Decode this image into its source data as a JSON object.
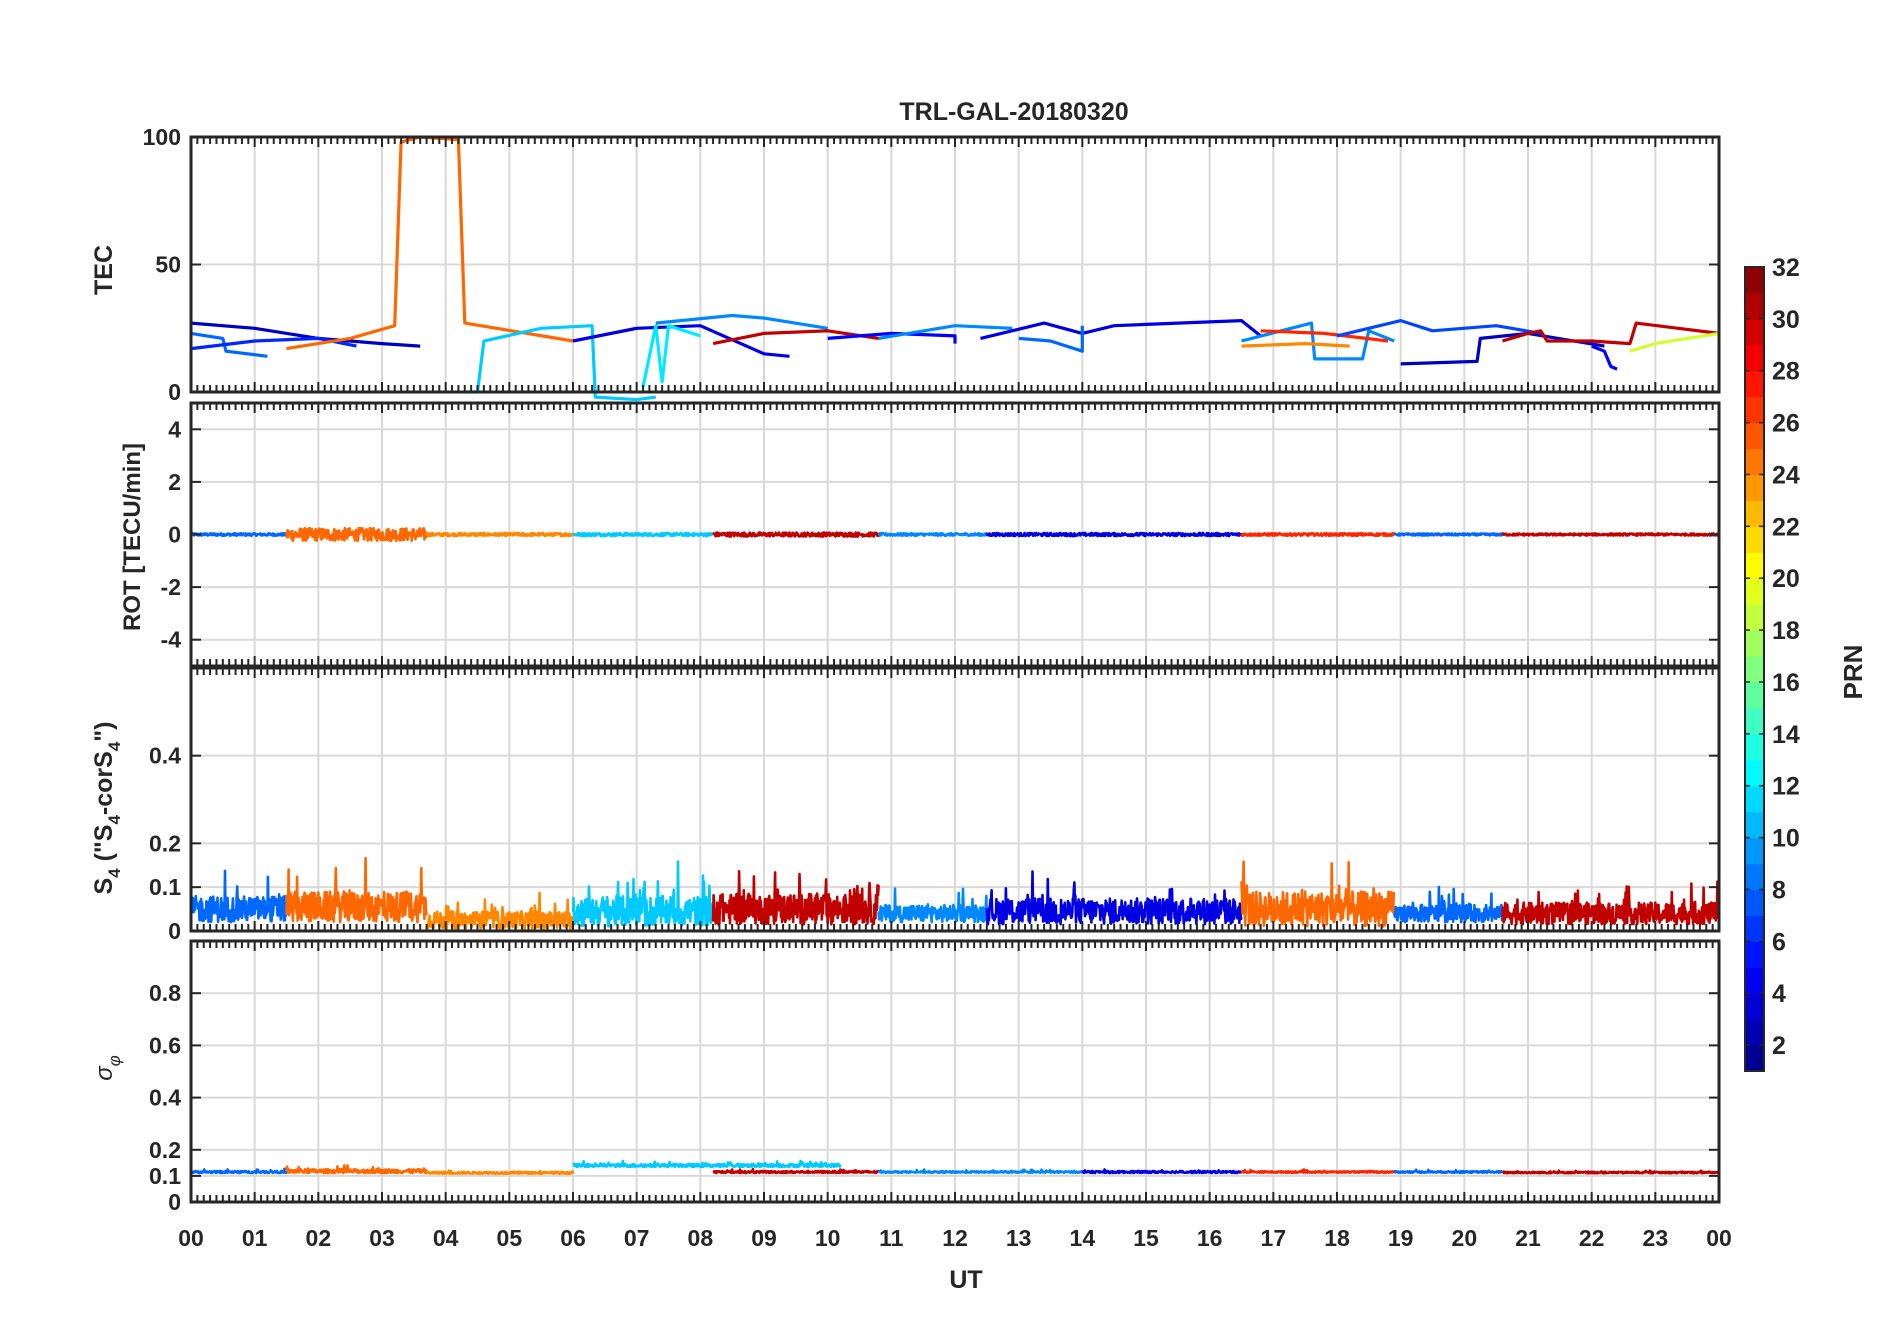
{
  "chart_data": {
    "type": "line",
    "title": "TRL-GAL-20180320",
    "xlabel": "UT",
    "x_ticks": [
      "00",
      "01",
      "02",
      "03",
      "04",
      "05",
      "06",
      "07",
      "08",
      "09",
      "10",
      "11",
      "12",
      "13",
      "14",
      "15",
      "16",
      "17",
      "18",
      "19",
      "20",
      "21",
      "22",
      "23",
      "00"
    ],
    "xlim": [
      0,
      24
    ],
    "grid": true,
    "colorbar": {
      "label": "PRN",
      "range": [
        1,
        32
      ],
      "ticks": [
        "2",
        "4",
        "6",
        "8",
        "10",
        "12",
        "14",
        "16",
        "18",
        "20",
        "22",
        "24",
        "26",
        "28",
        "30",
        "32"
      ],
      "colormap": "jet"
    },
    "panels": [
      {
        "name": "tec",
        "ylabel": "TEC",
        "ylim": [
          0,
          100
        ],
        "yticks": [
          "0",
          "50",
          "100"
        ],
        "series": [
          {
            "prn": 3,
            "x": [
              0.0,
              1.0,
              2.0,
              3.0,
              3.6
            ],
            "y": [
              27,
              25,
              21,
              19,
              18
            ]
          },
          {
            "prn": 8,
            "x": [
              0.0,
              0.5,
              0.55,
              1.2
            ],
            "y": [
              23,
              21,
              16,
              14
            ]
          },
          {
            "prn": 6,
            "x": [
              0.0,
              1.0,
              2.0,
              2.6
            ],
            "y": [
              17,
              20,
              21,
              18
            ]
          },
          {
            "prn": 25,
            "x": [
              1.5,
              2.5,
              3.2,
              3.3,
              3.6,
              4.2,
              4.3,
              6.0
            ],
            "y": [
              17,
              21,
              26,
              98,
              100,
              99,
              27,
              20
            ]
          },
          {
            "prn": 11,
            "x": [
              4.3,
              4.5,
              4.6,
              5.5,
              6.3,
              6.35,
              7.0,
              7.3
            ],
            "y": [
              0,
              0,
              20,
              25,
              26,
              -2,
              -3,
              -2
            ]
          },
          {
            "prn": 4,
            "x": [
              6.0,
              7.0,
              8.0,
              9.0,
              9.4
            ],
            "y": [
              20,
              25,
              26,
              15,
              14
            ]
          },
          {
            "prn": 12,
            "x": [
              7.1,
              7.3,
              7.4,
              7.5,
              8.0
            ],
            "y": [
              2,
              26,
              4,
              26,
              22
            ]
          },
          {
            "prn": 9,
            "x": [
              7.3,
              8.5,
              9.0,
              10.0
            ],
            "y": [
              27,
              30,
              29,
              25
            ]
          },
          {
            "prn": 30,
            "x": [
              8.2,
              9.0,
              10.0,
              10.8
            ],
            "y": [
              19,
              23,
              24,
              21
            ]
          },
          {
            "prn": 5,
            "x": [
              10.0,
              11.0,
              12.0,
              12.0
            ],
            "y": [
              21,
              23,
              22,
              19
            ]
          },
          {
            "prn": 9,
            "x": [
              10.8,
              12.0,
              12.9
            ],
            "y": [
              21,
              26,
              25
            ]
          },
          {
            "prn": 4,
            "x": [
              12.4,
              13.4,
              14.0,
              14.5,
              15.5,
              16.5,
              16.8
            ],
            "y": [
              21,
              27,
              23,
              26,
              27,
              28,
              22
            ]
          },
          {
            "prn": 8,
            "x": [
              13.0,
              13.5,
              14.0,
              14.0
            ],
            "y": [
              21,
              20,
              16,
              26
            ]
          },
          {
            "prn": 9,
            "x": [
              16.5,
              17.6,
              17.65,
              18.4,
              18.5,
              18.9
            ],
            "y": [
              20,
              27,
              13,
              13,
              24,
              20
            ]
          },
          {
            "prn": 24,
            "x": [
              16.5,
              17.5,
              18.2
            ],
            "y": [
              18,
              19,
              18
            ]
          },
          {
            "prn": 27,
            "x": [
              16.8,
              17.8,
              18.8
            ],
            "y": [
              24,
              23,
              20
            ]
          },
          {
            "prn": 7,
            "x": [
              18.0,
              19.0,
              19.5,
              20.5,
              21.2
            ],
            "y": [
              22,
              28,
              24,
              26,
              23
            ]
          },
          {
            "prn": 3,
            "x": [
              19.0,
              20.2,
              20.25,
              21.0,
              22.2
            ],
            "y": [
              11,
              12,
              21,
              23,
              18
            ]
          },
          {
            "prn": 5,
            "x": [
              22.0,
              22.2,
              22.3,
              22.4
            ],
            "y": [
              18,
              16,
              10,
              9
            ]
          },
          {
            "prn": 30,
            "x": [
              20.6,
              21.0,
              21.2,
              21.3,
              22.0,
              22.6,
              22.7,
              24.0
            ],
            "y": [
              20,
              23,
              24,
              20,
              20,
              19,
              27,
              23
            ]
          },
          {
            "prn": 19,
            "x": [
              22.6,
              23.0,
              24.0
            ],
            "y": [
              16,
              19,
              23
            ]
          }
        ]
      },
      {
        "name": "rot",
        "ylabel": "ROT [TECU/min]",
        "ylim": [
          -5,
          5
        ],
        "yticks": [
          "-4",
          "-2",
          "0",
          "2",
          "4"
        ],
        "segments": [
          {
            "prn": 8,
            "x0": 0.0,
            "x1": 1.5,
            "amp": 0.05
          },
          {
            "prn": 25,
            "x0": 1.5,
            "x1": 3.7,
            "amp": 0.25
          },
          {
            "prn": 24,
            "x0": 3.7,
            "x1": 6.0,
            "amp": 0.06
          },
          {
            "prn": 11,
            "x0": 6.0,
            "x1": 8.2,
            "amp": 0.06
          },
          {
            "prn": 30,
            "x0": 8.2,
            "x1": 10.8,
            "amp": 0.08
          },
          {
            "prn": 9,
            "x0": 10.8,
            "x1": 12.5,
            "amp": 0.05
          },
          {
            "prn": 4,
            "x0": 12.5,
            "x1": 16.5,
            "amp": 0.06
          },
          {
            "prn": 27,
            "x0": 16.5,
            "x1": 18.9,
            "amp": 0.05
          },
          {
            "prn": 8,
            "x0": 18.9,
            "x1": 20.6,
            "amp": 0.04
          },
          {
            "prn": 30,
            "x0": 20.6,
            "x1": 24.0,
            "amp": 0.04
          }
        ]
      },
      {
        "name": "s4",
        "ylabel": "S4 (\"S4-corS4\")",
        "ylabel_parts": {
          "s": "S",
          "sub": "4",
          "mid1": " (\"S",
          "mid2": "-corS",
          "tail": "\")"
        },
        "ylim": [
          0,
          0.6
        ],
        "yticks": [
          "0",
          "0.1",
          "0.2",
          "0.4"
        ],
        "segments": [
          {
            "prn": 8,
            "x0": 0.0,
            "x1": 1.5,
            "base": 0.05,
            "amp": 0.06
          },
          {
            "prn": 25,
            "x0": 1.5,
            "x1": 3.7,
            "base": 0.055,
            "amp": 0.07
          },
          {
            "prn": 24,
            "x0": 3.7,
            "x1": 6.0,
            "base": 0.025,
            "amp": 0.04
          },
          {
            "prn": 11,
            "x0": 6.0,
            "x1": 8.2,
            "base": 0.045,
            "amp": 0.07
          },
          {
            "prn": 30,
            "x0": 8.2,
            "x1": 10.8,
            "base": 0.05,
            "amp": 0.07
          },
          {
            "prn": 9,
            "x0": 10.8,
            "x1": 12.5,
            "base": 0.04,
            "amp": 0.04
          },
          {
            "prn": 4,
            "x0": 12.5,
            "x1": 16.5,
            "base": 0.045,
            "amp": 0.06
          },
          {
            "prn": 25,
            "x0": 16.5,
            "x1": 18.9,
            "base": 0.05,
            "amp": 0.08
          },
          {
            "prn": 8,
            "x0": 18.9,
            "x1": 20.6,
            "base": 0.04,
            "amp": 0.04
          },
          {
            "prn": 30,
            "x0": 20.6,
            "x1": 24.0,
            "base": 0.04,
            "amp": 0.05
          }
        ]
      },
      {
        "name": "sigma",
        "ylabel": "σφ",
        "ylabel_parts": {
          "sym": "σ",
          "sub": "φ"
        },
        "ylim": [
          0,
          1
        ],
        "yticks": [
          "0",
          "0.1",
          "0.2",
          "0.4",
          "0.6",
          "0.8"
        ],
        "segments": [
          {
            "prn": 8,
            "x0": 0.0,
            "x1": 1.5,
            "base": 0.115,
            "amp": 0.008
          },
          {
            "prn": 25,
            "x0": 1.5,
            "x1": 3.7,
            "base": 0.118,
            "amp": 0.015
          },
          {
            "prn": 24,
            "x0": 3.7,
            "x1": 6.0,
            "base": 0.112,
            "amp": 0.008
          },
          {
            "prn": 11,
            "x0": 6.0,
            "x1": 10.2,
            "base": 0.14,
            "amp": 0.012
          },
          {
            "prn": 30,
            "x0": 8.2,
            "x1": 10.8,
            "base": 0.115,
            "amp": 0.008
          },
          {
            "prn": 9,
            "x0": 10.8,
            "x1": 14.0,
            "base": 0.115,
            "amp": 0.006
          },
          {
            "prn": 4,
            "x0": 14.0,
            "x1": 16.5,
            "base": 0.115,
            "amp": 0.008
          },
          {
            "prn": 27,
            "x0": 16.5,
            "x1": 18.9,
            "base": 0.115,
            "amp": 0.006
          },
          {
            "prn": 8,
            "x0": 18.9,
            "x1": 20.6,
            "base": 0.115,
            "amp": 0.006
          },
          {
            "prn": 30,
            "x0": 20.6,
            "x1": 24.0,
            "base": 0.113,
            "amp": 0.006
          }
        ]
      }
    ]
  }
}
